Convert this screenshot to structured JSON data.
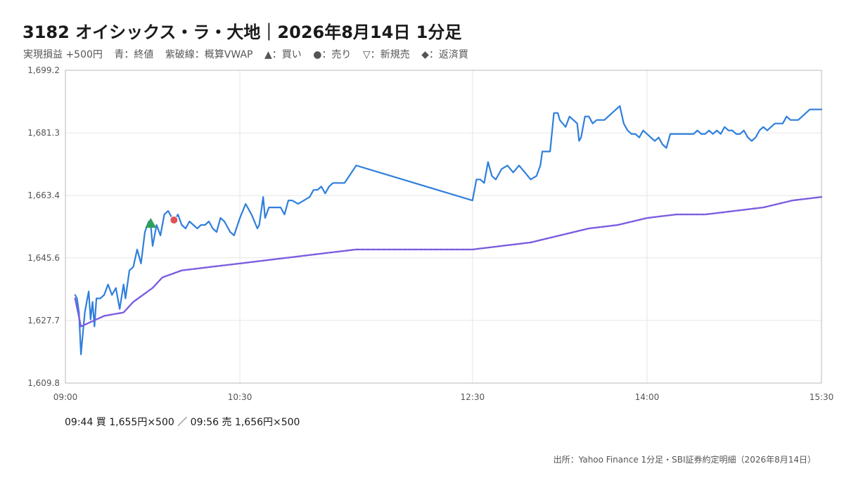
{
  "header": {
    "title": "3182 オイシックス・ラ・大地｜2026年8月14日 1分足",
    "pnl": "実現損益 +500円",
    "legend_close": "青：終値",
    "legend_vwap": "紫破線：概算VWAP",
    "legend_buy": "▲：買い",
    "legend_sell": "●：売り",
    "legend_short": "▽：新規売",
    "legend_cover": "◆：返済買"
  },
  "trades_summary": "09:44 買 1,655円×500 ／ 09:56 売 1,656円×500",
  "source": "出所：Yahoo Finance 1分足・SBI証券約定明細（2026年8月14日）",
  "colors": {
    "close": "#2f7fdc",
    "vwap": "#7b5ce0",
    "buy": "#2ea05a",
    "sell": "#e05454"
  },
  "chart_data": {
    "type": "line",
    "ylim": [
      1609.8,
      1699.2
    ],
    "yticks": [
      "1,609.8",
      "1,627.7",
      "1,645.6",
      "1,663.4",
      "1,681.3",
      "1,699.2"
    ],
    "xlim": [
      "09:00",
      "15:30"
    ],
    "xticks": [
      "09:00",
      "10:30",
      "12:30",
      "14:00",
      "15:30"
    ],
    "series": [
      {
        "key": "close",
        "points": [
          [
            "09:05",
            1635
          ],
          [
            "09:06",
            1634
          ],
          [
            "09:07",
            1630
          ],
          [
            "09:08",
            1618
          ],
          [
            "09:09",
            1624
          ],
          [
            "09:10",
            1630
          ],
          [
            "09:11",
            1633
          ],
          [
            "09:12",
            1636
          ],
          [
            "09:13",
            1628
          ],
          [
            "09:14",
            1633
          ],
          [
            "09:15",
            1626
          ],
          [
            "09:16",
            1634
          ],
          [
            "09:18",
            1634
          ],
          [
            "09:20",
            1635
          ],
          [
            "09:22",
            1638
          ],
          [
            "09:24",
            1635
          ],
          [
            "09:26",
            1637
          ],
          [
            "09:28",
            1631
          ],
          [
            "09:30",
            1638
          ],
          [
            "09:31",
            1634
          ],
          [
            "09:33",
            1642
          ],
          [
            "09:35",
            1643
          ],
          [
            "09:37",
            1648
          ],
          [
            "09:39",
            1644
          ],
          [
            "09:41",
            1653
          ],
          [
            "09:43",
            1656
          ],
          [
            "09:44",
            1655
          ],
          [
            "09:45",
            1649
          ],
          [
            "09:47",
            1655
          ],
          [
            "09:49",
            1652
          ],
          [
            "09:51",
            1658
          ],
          [
            "09:53",
            1659
          ],
          [
            "09:55",
            1657
          ],
          [
            "09:56",
            1656
          ],
          [
            "09:58",
            1658
          ],
          [
            "10:00",
            1655
          ],
          [
            "10:02",
            1654
          ],
          [
            "10:04",
            1656
          ],
          [
            "10:06",
            1655
          ],
          [
            "10:08",
            1654
          ],
          [
            "10:10",
            1655
          ],
          [
            "10:12",
            1655
          ],
          [
            "10:14",
            1656
          ],
          [
            "10:16",
            1654
          ],
          [
            "10:18",
            1653
          ],
          [
            "10:20",
            1657
          ],
          [
            "10:22",
            1656
          ],
          [
            "10:25",
            1653
          ],
          [
            "10:27",
            1652
          ],
          [
            "10:30",
            1657
          ],
          [
            "10:33",
            1661
          ],
          [
            "10:36",
            1658
          ],
          [
            "10:39",
            1654
          ],
          [
            "10:40",
            1655
          ],
          [
            "10:42",
            1663
          ],
          [
            "10:43",
            1657
          ],
          [
            "10:45",
            1660
          ],
          [
            "10:48",
            1660
          ],
          [
            "10:51",
            1660
          ],
          [
            "10:53",
            1658
          ],
          [
            "10:55",
            1662
          ],
          [
            "10:57",
            1662
          ],
          [
            "11:00",
            1661
          ],
          [
            "11:03",
            1662
          ],
          [
            "11:06",
            1663
          ],
          [
            "11:08",
            1665
          ],
          [
            "11:10",
            1665
          ],
          [
            "11:12",
            1666
          ],
          [
            "11:14",
            1664
          ],
          [
            "11:16",
            1666
          ],
          [
            "11:18",
            1667
          ],
          [
            "11:21",
            1667
          ],
          [
            "11:24",
            1667
          ],
          [
            "11:30",
            1672
          ],
          [
            "12:30",
            1662
          ],
          [
            "12:32",
            1668
          ],
          [
            "12:34",
            1668
          ],
          [
            "12:36",
            1667
          ],
          [
            "12:38",
            1673
          ],
          [
            "12:40",
            1669
          ],
          [
            "12:42",
            1668
          ],
          [
            "12:45",
            1671
          ],
          [
            "12:48",
            1672
          ],
          [
            "12:51",
            1670
          ],
          [
            "12:54",
            1672
          ],
          [
            "12:57",
            1670
          ],
          [
            "13:00",
            1668
          ],
          [
            "13:03",
            1669
          ],
          [
            "13:05",
            1672
          ],
          [
            "13:06",
            1676
          ],
          [
            "13:10",
            1676
          ],
          [
            "13:12",
            1687
          ],
          [
            "13:14",
            1687
          ],
          [
            "13:15",
            1685
          ],
          [
            "13:18",
            1683
          ],
          [
            "13:20",
            1686
          ],
          [
            "13:22",
            1685
          ],
          [
            "13:24",
            1684
          ],
          [
            "13:25",
            1679
          ],
          [
            "13:26",
            1680
          ],
          [
            "13:28",
            1686
          ],
          [
            "13:30",
            1686
          ],
          [
            "13:32",
            1684
          ],
          [
            "13:34",
            1685
          ],
          [
            "13:36",
            1685
          ],
          [
            "13:38",
            1685
          ],
          [
            "13:40",
            1686
          ],
          [
            "13:42",
            1687
          ],
          [
            "13:44",
            1688
          ],
          [
            "13:46",
            1689
          ],
          [
            "13:48",
            1684
          ],
          [
            "13:50",
            1682
          ],
          [
            "13:52",
            1681
          ],
          [
            "13:54",
            1681
          ],
          [
            "13:56",
            1680
          ],
          [
            "13:58",
            1682
          ],
          [
            "14:00",
            1681
          ],
          [
            "14:02",
            1680
          ],
          [
            "14:04",
            1679
          ],
          [
            "14:06",
            1680
          ],
          [
            "14:08",
            1678
          ],
          [
            "14:10",
            1677
          ],
          [
            "14:12",
            1681
          ],
          [
            "14:16",
            1681
          ],
          [
            "14:20",
            1681
          ],
          [
            "14:24",
            1681
          ],
          [
            "14:26",
            1682
          ],
          [
            "14:28",
            1681
          ],
          [
            "14:30",
            1681
          ],
          [
            "14:32",
            1682
          ],
          [
            "14:34",
            1681
          ],
          [
            "14:36",
            1682
          ],
          [
            "14:38",
            1681
          ],
          [
            "14:40",
            1683
          ],
          [
            "14:42",
            1682
          ],
          [
            "14:44",
            1682
          ],
          [
            "14:46",
            1681
          ],
          [
            "14:48",
            1681
          ],
          [
            "14:50",
            1682
          ],
          [
            "14:52",
            1680
          ],
          [
            "14:54",
            1679
          ],
          [
            "14:56",
            1680
          ],
          [
            "14:58",
            1682
          ],
          [
            "15:00",
            1683
          ],
          [
            "15:02",
            1682
          ],
          [
            "15:04",
            1683
          ],
          [
            "15:06",
            1684
          ],
          [
            "15:08",
            1684
          ],
          [
            "15:10",
            1684
          ],
          [
            "15:12",
            1686
          ],
          [
            "15:14",
            1685
          ],
          [
            "15:18",
            1685
          ],
          [
            "15:20",
            1686
          ],
          [
            "15:22",
            1687
          ],
          [
            "15:24",
            1688
          ],
          [
            "15:26",
            1688
          ],
          [
            "15:30",
            1688
          ]
        ]
      },
      {
        "key": "vwap",
        "points": [
          [
            "09:05",
            1634
          ],
          [
            "09:08",
            1626
          ],
          [
            "09:12",
            1627
          ],
          [
            "09:20",
            1629
          ],
          [
            "09:30",
            1630
          ],
          [
            "09:35",
            1633
          ],
          [
            "09:45",
            1637
          ],
          [
            "09:50",
            1640
          ],
          [
            "10:00",
            1642
          ],
          [
            "10:15",
            1643
          ],
          [
            "10:30",
            1644
          ],
          [
            "10:45",
            1645
          ],
          [
            "11:00",
            1646
          ],
          [
            "11:15",
            1647
          ],
          [
            "11:30",
            1648
          ],
          [
            "12:00",
            1648
          ],
          [
            "12:30",
            1648
          ],
          [
            "12:45",
            1649
          ],
          [
            "13:00",
            1650
          ],
          [
            "13:15",
            1652
          ],
          [
            "13:30",
            1654
          ],
          [
            "13:45",
            1655
          ],
          [
            "14:00",
            1657
          ],
          [
            "14:15",
            1658
          ],
          [
            "14:30",
            1658
          ],
          [
            "14:45",
            1659
          ],
          [
            "15:00",
            1660
          ],
          [
            "15:15",
            1662
          ],
          [
            "15:30",
            1663
          ]
        ]
      }
    ],
    "markers": [
      {
        "type": "buy",
        "time": "09:44",
        "price": 1655
      },
      {
        "type": "sell",
        "time": "09:56",
        "price": 1656
      }
    ]
  }
}
